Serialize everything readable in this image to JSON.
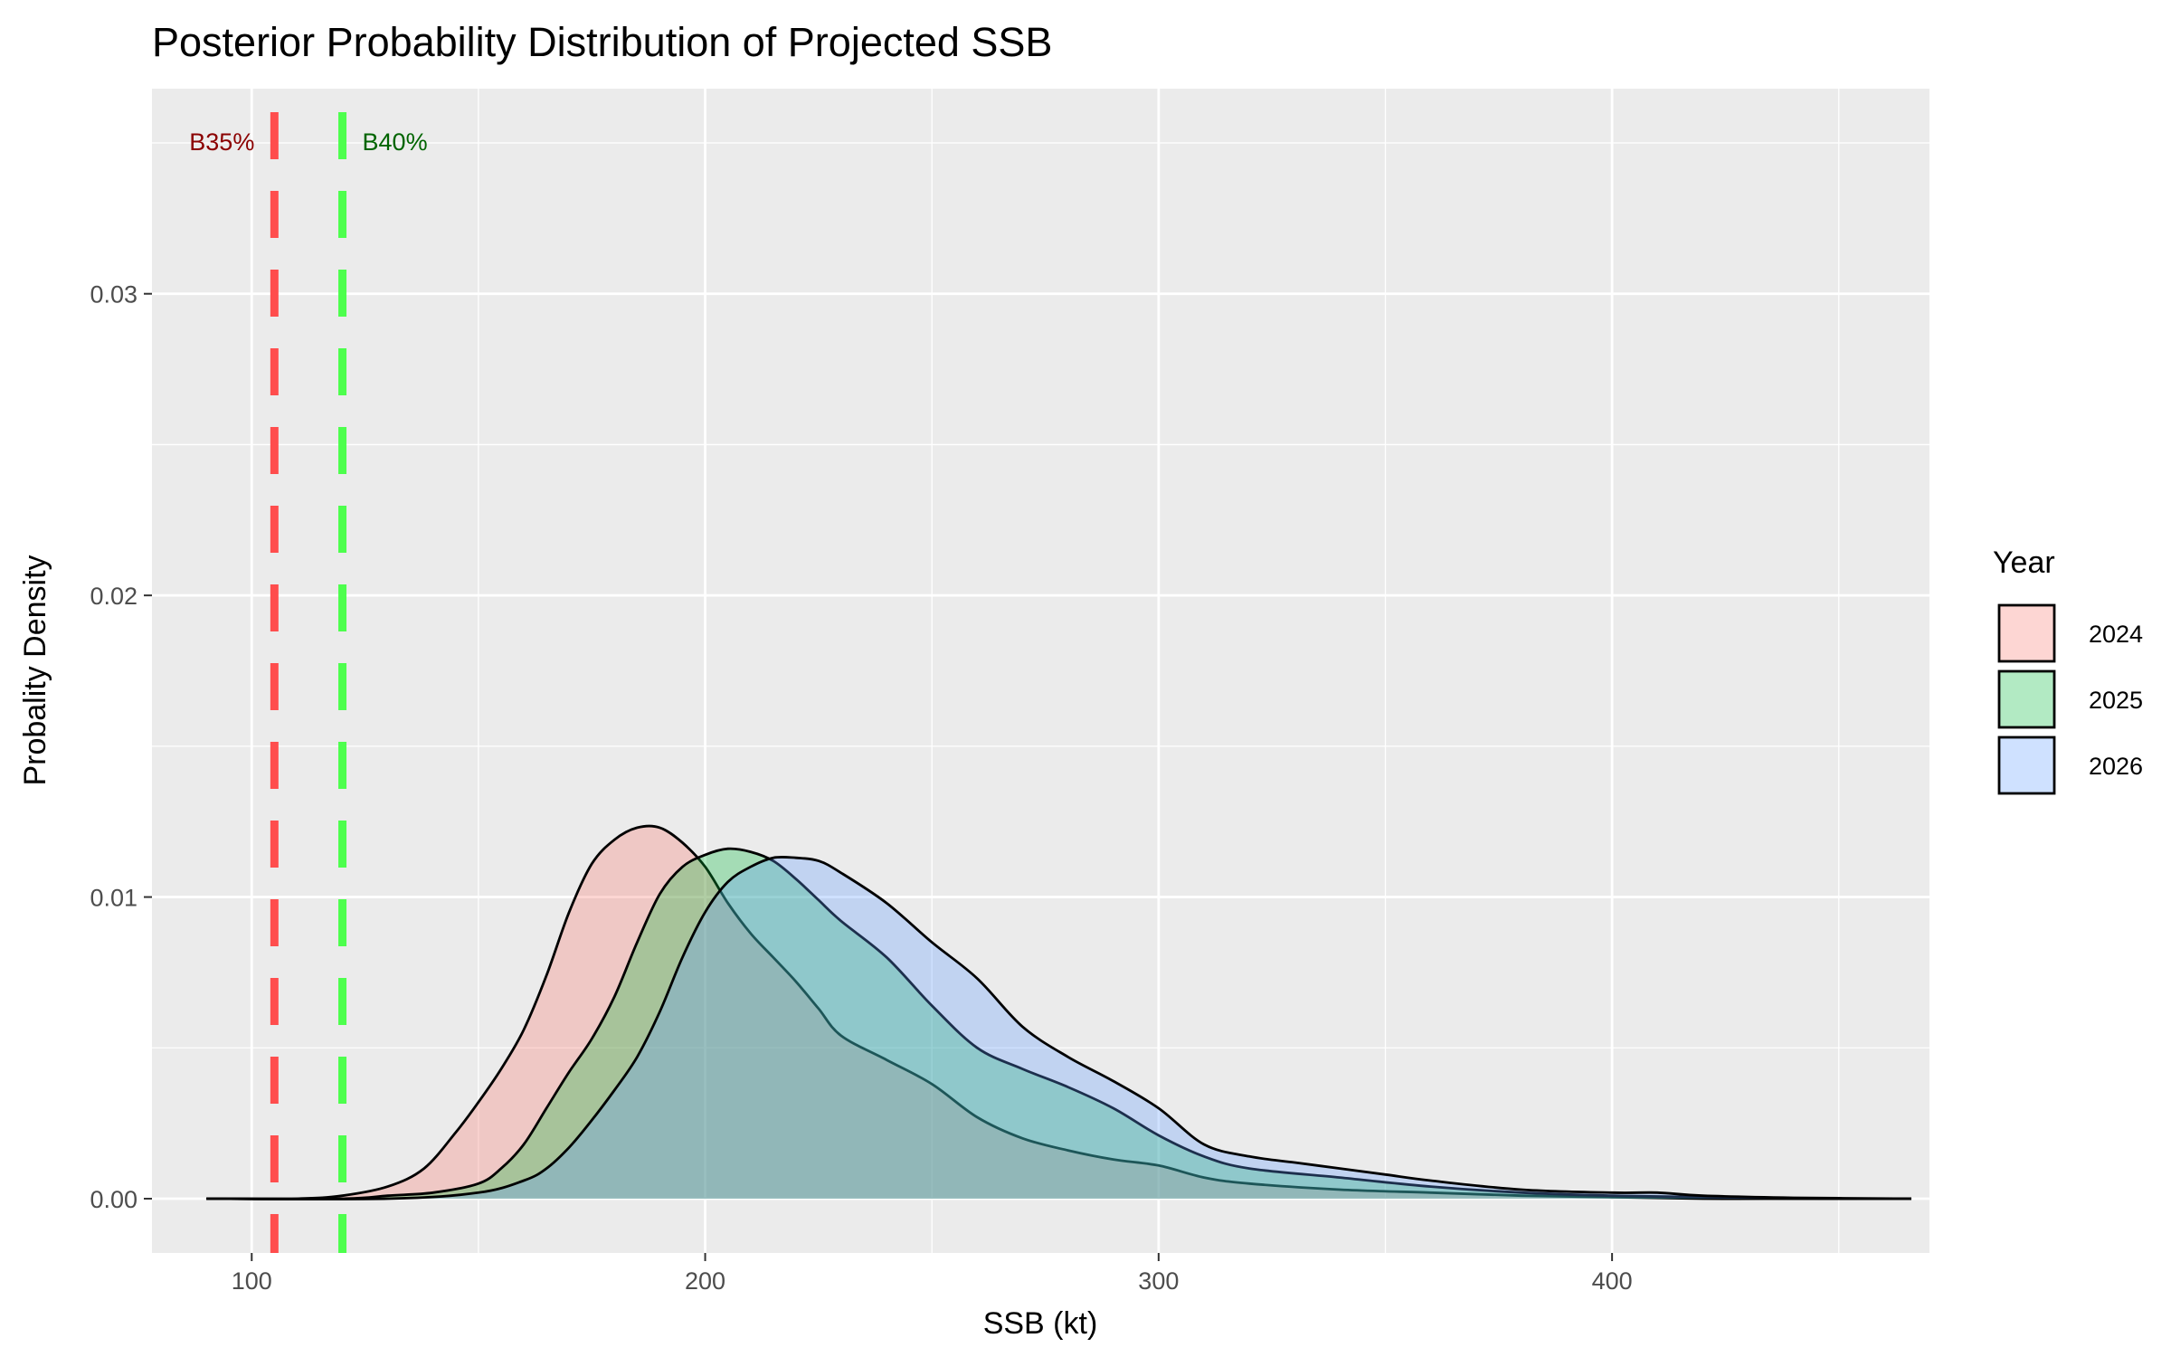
{
  "chart_data": {
    "type": "area",
    "title": "Posterior Probability Distribution of Projected SSB",
    "xlabel": "SSB (kt)",
    "ylabel": "Probality Density",
    "xlim": [
      78,
      470
    ],
    "ylim": [
      -0.0018,
      0.0368
    ],
    "x_ticks": [
      100,
      200,
      300,
      400
    ],
    "x_minor_ticks": [
      150,
      250,
      350,
      450
    ],
    "y_ticks": [
      0.0,
      0.01,
      0.02,
      0.03
    ],
    "y_tick_labels": [
      "0.00",
      "0.01",
      "0.02",
      "0.03"
    ],
    "y_minor_ticks": [
      0.005,
      0.015,
      0.025,
      0.035
    ],
    "grid": true,
    "legend": {
      "title": "Year",
      "position": "right"
    },
    "series": [
      {
        "name": "2024",
        "color": "#F8766D",
        "x": [
          90,
          110,
          120,
          130,
          138,
          145,
          150,
          155,
          160,
          165,
          170,
          175,
          180,
          185,
          190,
          195,
          200,
          205,
          210,
          215,
          220,
          225,
          230,
          240,
          250,
          260,
          270,
          280,
          290,
          300,
          310,
          320,
          340,
          360,
          380,
          400,
          420,
          440,
          466
        ],
        "y": [
          0.0,
          0.0,
          0.0001,
          0.0004,
          0.001,
          0.0022,
          0.0032,
          0.0043,
          0.0056,
          0.0074,
          0.0095,
          0.0111,
          0.0119,
          0.0123,
          0.0123,
          0.0118,
          0.011,
          0.0098,
          0.0088,
          0.008,
          0.0072,
          0.0063,
          0.0054,
          0.0046,
          0.0038,
          0.0027,
          0.002,
          0.0016,
          0.0013,
          0.0011,
          0.0007,
          0.0005,
          0.0003,
          0.0002,
          0.0001,
          5e-05,
          0.0,
          0.0,
          0.0
        ]
      },
      {
        "name": "2025",
        "color": "#00BA38",
        "x": [
          90,
          120,
          130,
          140,
          150,
          155,
          160,
          165,
          170,
          175,
          180,
          185,
          190,
          195,
          200,
          205,
          210,
          215,
          220,
          225,
          230,
          240,
          250,
          260,
          270,
          280,
          290,
          300,
          310,
          320,
          340,
          360,
          380,
          400,
          420,
          440,
          466
        ],
        "y": [
          0.0,
          0.0,
          0.0001,
          0.0002,
          0.0005,
          0.001,
          0.0018,
          0.003,
          0.0042,
          0.0053,
          0.0067,
          0.0085,
          0.0101,
          0.011,
          0.0114,
          0.0116,
          0.0115,
          0.0112,
          0.0106,
          0.0099,
          0.0092,
          0.008,
          0.0064,
          0.005,
          0.0043,
          0.0037,
          0.003,
          0.0021,
          0.0014,
          0.001,
          0.0007,
          0.0004,
          0.0002,
          0.0001,
          5e-05,
          0.0,
          0.0
        ]
      },
      {
        "name": "2026",
        "color": "#619CFF",
        "x": [
          90,
          130,
          150,
          160,
          165,
          170,
          175,
          180,
          185,
          190,
          195,
          200,
          205,
          210,
          215,
          220,
          225,
          230,
          240,
          250,
          260,
          270,
          280,
          290,
          300,
          310,
          320,
          330,
          340,
          350,
          360,
          380,
          400,
          410,
          420,
          440,
          466
        ],
        "y": [
          0.0,
          0.0,
          0.0002,
          0.0006,
          0.001,
          0.0017,
          0.0026,
          0.0036,
          0.0047,
          0.0062,
          0.008,
          0.0095,
          0.0105,
          0.011,
          0.0113,
          0.0113,
          0.0112,
          0.0108,
          0.0098,
          0.0085,
          0.0073,
          0.0057,
          0.0047,
          0.0039,
          0.003,
          0.0018,
          0.0014,
          0.0012,
          0.001,
          0.0008,
          0.0006,
          0.0003,
          0.0002,
          0.0002,
          0.0001,
          3e-05,
          0.0
        ]
      }
    ],
    "reference_lines": [
      {
        "label": "B35%",
        "x": 105,
        "color": "#FF4D4D",
        "label_color": "#8B0000",
        "label_side": "left"
      },
      {
        "label": "B40%",
        "x": 120,
        "color": "#4DFF4D",
        "label_color": "#006400",
        "label_side": "right"
      }
    ]
  }
}
